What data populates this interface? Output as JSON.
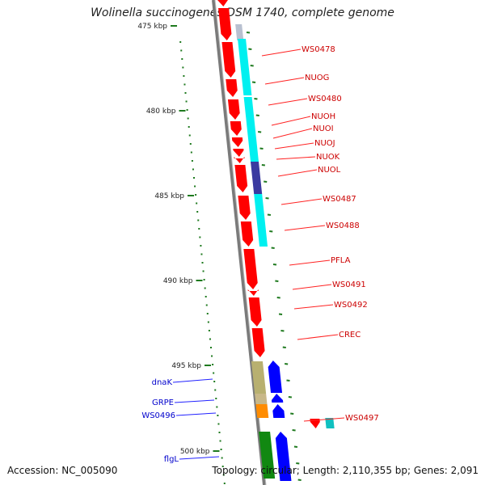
{
  "header": {
    "title": "Wolinella succinogenes DSM 1740, complete genome"
  },
  "footer": {
    "accession": "Accession: NC_005090",
    "topology": "Topology: circular; Length: 2,110,355 bp; Genes: 2,091"
  },
  "axis": {
    "unit": "kbp",
    "major_ticks": [
      "475 kbp",
      "480 kbp",
      "485 kbp",
      "490 kbp",
      "495 kbp",
      "500 kbp"
    ]
  },
  "colors": {
    "backbone": "#8a8a8a",
    "forward_gene": "#ff0000",
    "reverse_gene": "#0000ff",
    "cyan_track": "#00f0f0",
    "tick": "#1f7a1f",
    "label_forward": "#cc0000",
    "label_reverse": "#0000cc"
  },
  "genes": [
    {
      "name": "WS0478",
      "strand": "forward"
    },
    {
      "name": "NUOG",
      "strand": "forward"
    },
    {
      "name": "WS0480",
      "strand": "forward"
    },
    {
      "name": "NUOH",
      "strand": "forward"
    },
    {
      "name": "NUOI",
      "strand": "forward"
    },
    {
      "name": "NUOJ",
      "strand": "forward"
    },
    {
      "name": "NUOK",
      "strand": "forward"
    },
    {
      "name": "NUOL",
      "strand": "forward"
    },
    {
      "name": "WS0487",
      "strand": "forward"
    },
    {
      "name": "WS0488",
      "strand": "forward"
    },
    {
      "name": "PFLA",
      "strand": "forward"
    },
    {
      "name": "WS0491",
      "strand": "forward"
    },
    {
      "name": "WS0492",
      "strand": "forward"
    },
    {
      "name": "CREC",
      "strand": "forward"
    },
    {
      "name": "WS0497",
      "strand": "forward"
    },
    {
      "name": "dnaK",
      "strand": "reverse"
    },
    {
      "name": "GRPE",
      "strand": "reverse"
    },
    {
      "name": "WS0496",
      "strand": "reverse"
    },
    {
      "name": "flgL",
      "strand": "reverse"
    }
  ]
}
